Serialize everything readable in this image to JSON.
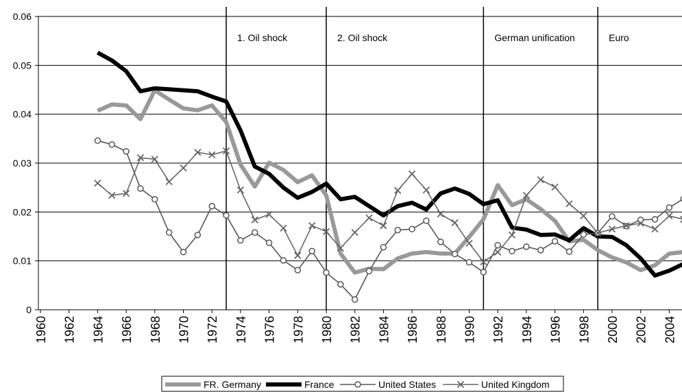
{
  "chart_data": {
    "type": "line",
    "x": [
      1964,
      1965,
      1966,
      1967,
      1968,
      1969,
      1970,
      1971,
      1972,
      1973,
      1974,
      1975,
      1976,
      1977,
      1978,
      1979,
      1980,
      1981,
      1982,
      1983,
      1984,
      1985,
      1986,
      1987,
      1988,
      1989,
      1990,
      1991,
      1992,
      1993,
      1994,
      1995,
      1996,
      1997,
      1998,
      1999,
      2000,
      2001,
      2002,
      2003,
      2004,
      2005
    ],
    "series": [
      {
        "name": "FR. Germany",
        "color": "#999999",
        "values": [
          0.0407,
          0.042,
          0.0418,
          0.039,
          0.0449,
          0.043,
          0.0412,
          0.0408,
          0.0418,
          0.0384,
          0.0297,
          0.0252,
          0.0301,
          0.0286,
          0.0261,
          0.0275,
          0.0234,
          0.0115,
          0.0076,
          0.0084,
          0.0083,
          0.0105,
          0.0115,
          0.0118,
          0.0115,
          0.0115,
          0.0149,
          0.0185,
          0.0255,
          0.0214,
          0.0226,
          0.0206,
          0.0182,
          0.014,
          0.0143,
          0.0122,
          0.0107,
          0.0097,
          0.0081,
          0.0091,
          0.0115,
          0.0118
        ]
      },
      {
        "name": "France",
        "color": "#000000",
        "values": [
          0.0526,
          0.051,
          0.0488,
          0.0447,
          0.0453,
          0.0451,
          0.0449,
          0.0447,
          0.0436,
          0.0426,
          0.0367,
          0.0293,
          0.0278,
          0.025,
          0.0229,
          0.0241,
          0.0258,
          0.0226,
          0.0231,
          0.0212,
          0.0193,
          0.0212,
          0.0219,
          0.0205,
          0.0238,
          0.0248,
          0.0237,
          0.0216,
          0.0224,
          0.0168,
          0.0164,
          0.0153,
          0.0154,
          0.0142,
          0.0167,
          0.015,
          0.0149,
          0.0132,
          0.0105,
          0.007,
          0.008,
          0.0094
        ]
      },
      {
        "name": "United States",
        "color": "#555555",
        "marker": "circle",
        "values": [
          0.0346,
          0.0338,
          0.0324,
          0.0248,
          0.0226,
          0.0158,
          0.0118,
          0.0153,
          0.0212,
          0.0193,
          0.0142,
          0.0158,
          0.0137,
          0.0101,
          0.0081,
          0.012,
          0.0076,
          0.0052,
          0.0021,
          0.0079,
          0.0128,
          0.0163,
          0.0165,
          0.0182,
          0.0139,
          0.0114,
          0.0097,
          0.0077,
          0.0132,
          0.012,
          0.0129,
          0.0122,
          0.014,
          0.0119,
          0.0154,
          0.0157,
          0.0191,
          0.0171,
          0.0184,
          0.0185,
          0.0209,
          0.0227
        ]
      },
      {
        "name": "United Kingdom",
        "color": "#666666",
        "marker": "cross",
        "values": [
          0.0259,
          0.0234,
          0.0238,
          0.0311,
          0.0308,
          0.0262,
          0.029,
          0.0322,
          0.0317,
          0.0325,
          0.0245,
          0.0184,
          0.0195,
          0.0167,
          0.0111,
          0.0172,
          0.016,
          0.0126,
          0.0158,
          0.0188,
          0.0172,
          0.0244,
          0.0278,
          0.0245,
          0.0196,
          0.0178,
          0.0136,
          0.0098,
          0.0118,
          0.0153,
          0.0234,
          0.0266,
          0.0251,
          0.0217,
          0.0192,
          0.0157,
          0.0165,
          0.0172,
          0.0177,
          0.0165,
          0.0192,
          0.0185
        ]
      }
    ],
    "xlim": [
      1960,
      2005
    ],
    "xticks": [
      1960,
      1962,
      1964,
      1966,
      1968,
      1970,
      1972,
      1974,
      1976,
      1978,
      1980,
      1982,
      1984,
      1986,
      1988,
      1990,
      1992,
      1994,
      1996,
      1998,
      2000,
      2002,
      2004
    ],
    "ylim": [
      0,
      0.06
    ],
    "yticks": [
      0,
      0.01,
      0.02,
      0.03,
      0.04,
      0.05,
      0.06
    ],
    "grid": true,
    "legend": "bottom",
    "events": [
      {
        "x": 1973,
        "label": "1. Oil shock"
      },
      {
        "x": 1980,
        "label": "2. Oil shock"
      },
      {
        "x": 1991,
        "label": "German unification"
      },
      {
        "x": 1999,
        "label": "Euro"
      }
    ]
  }
}
